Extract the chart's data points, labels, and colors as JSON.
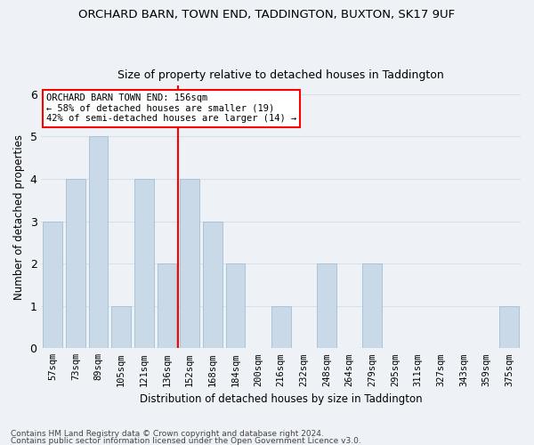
{
  "title1": "ORCHARD BARN, TOWN END, TADDINGTON, BUXTON, SK17 9UF",
  "title2": "Size of property relative to detached houses in Taddington",
  "xlabel": "Distribution of detached houses by size in Taddington",
  "ylabel": "Number of detached properties",
  "categories": [
    "57sqm",
    "73sqm",
    "89sqm",
    "105sqm",
    "121sqm",
    "136sqm",
    "152sqm",
    "168sqm",
    "184sqm",
    "200sqm",
    "216sqm",
    "232sqm",
    "248sqm",
    "264sqm",
    "279sqm",
    "295sqm",
    "311sqm",
    "327sqm",
    "343sqm",
    "359sqm",
    "375sqm"
  ],
  "values": [
    3,
    4,
    5,
    1,
    4,
    2,
    4,
    3,
    2,
    0,
    1,
    0,
    2,
    0,
    2,
    0,
    0,
    0,
    0,
    0,
    1
  ],
  "bar_color": "#c9d9e8",
  "bar_edge_color": "#a8c4d8",
  "red_line_x": 5.5,
  "annotation_text": "ORCHARD BARN TOWN END: 156sqm\n← 58% of detached houses are smaller (19)\n42% of semi-detached houses are larger (14) →",
  "annotation_box_color": "white",
  "annotation_box_edge_color": "red",
  "red_line_color": "red",
  "ylim": [
    0,
    6.2
  ],
  "yticks": [
    0,
    1,
    2,
    3,
    4,
    5,
    6
  ],
  "grid_color": "#d8e0e8",
  "footnote1": "Contains HM Land Registry data © Crown copyright and database right 2024.",
  "footnote2": "Contains public sector information licensed under the Open Government Licence v3.0.",
  "bg_color": "#eef2f7",
  "title1_fontsize": 9.5,
  "title2_fontsize": 9.0,
  "xlabel_fontsize": 8.5,
  "ylabel_fontsize": 8.5,
  "tick_fontsize": 7.5,
  "annot_fontsize": 7.5,
  "footnote_fontsize": 6.5
}
